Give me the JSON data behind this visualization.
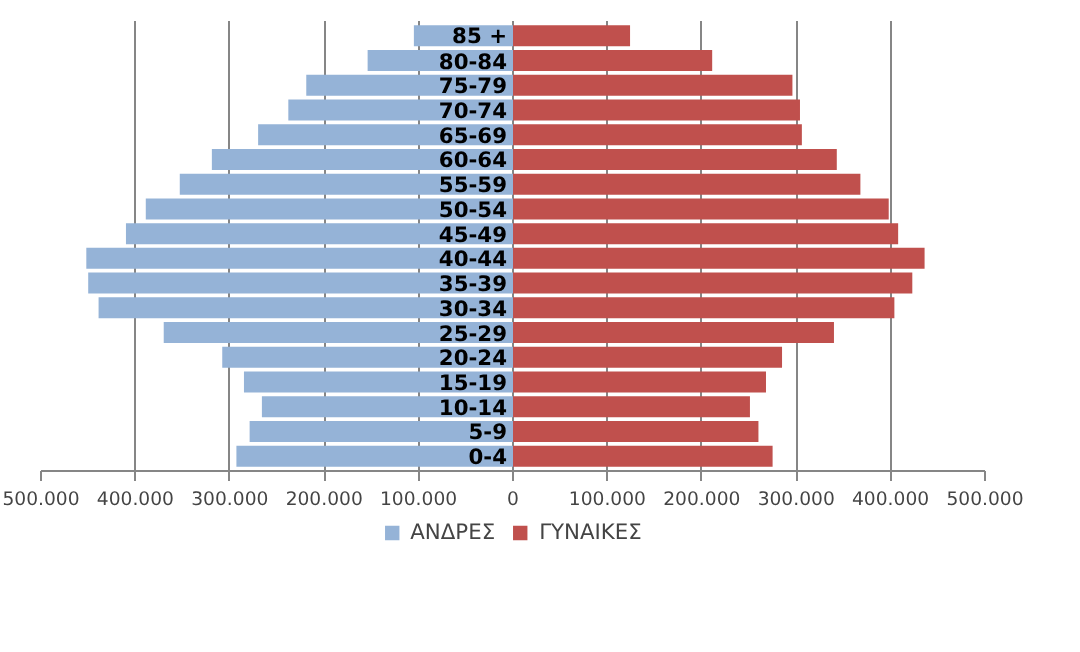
{
  "chart_data": {
    "type": "bar",
    "orientation": "horizontal",
    "stacked": true,
    "categories": [
      "85 +",
      "80-84",
      "75-79",
      "70-74",
      "65-69",
      "60-64",
      "55-59",
      "50-54",
      "45-49",
      "40-44",
      "35-39",
      "30-34",
      "25-29",
      "20-24",
      "15-19",
      "10-14",
      "5-9",
      "0-4"
    ],
    "series": [
      {
        "name": "ΑΝΔΡΕΣ",
        "color": "#95b3d7",
        "values": [
          -105000,
          -154000,
          -219000,
          -238000,
          -270000,
          -319000,
          -353000,
          -389000,
          -410000,
          -452000,
          -450000,
          -439000,
          -370000,
          -308000,
          -285000,
          -266000,
          -279000,
          -293000
        ]
      },
      {
        "name": "ΓΥΝΑΙΚΕΣ",
        "color": "#c0504d",
        "values": [
          124000,
          211000,
          296000,
          304000,
          306000,
          343000,
          368000,
          398000,
          408000,
          436000,
          423000,
          404000,
          340000,
          285000,
          268000,
          251000,
          260000,
          275000
        ]
      }
    ],
    "xlim": [
      -500000,
      500000
    ],
    "xticks": [
      {
        "value": -500000,
        "label": "500.000"
      },
      {
        "value": -400000,
        "label": "400.000"
      },
      {
        "value": -300000,
        "label": "300.000"
      },
      {
        "value": -200000,
        "label": "200.000"
      },
      {
        "value": -100000,
        "label": "100.000"
      },
      0,
      {
        "value": 100000,
        "label": "100.000"
      },
      {
        "value": 200000,
        "label": "200.000"
      },
      {
        "value": 300000,
        "label": "300.000"
      },
      {
        "value": 400000,
        "label": "400.000"
      },
      {
        "value": 500000,
        "label": "500.000"
      }
    ],
    "grid": "x",
    "legend": "bottom"
  }
}
